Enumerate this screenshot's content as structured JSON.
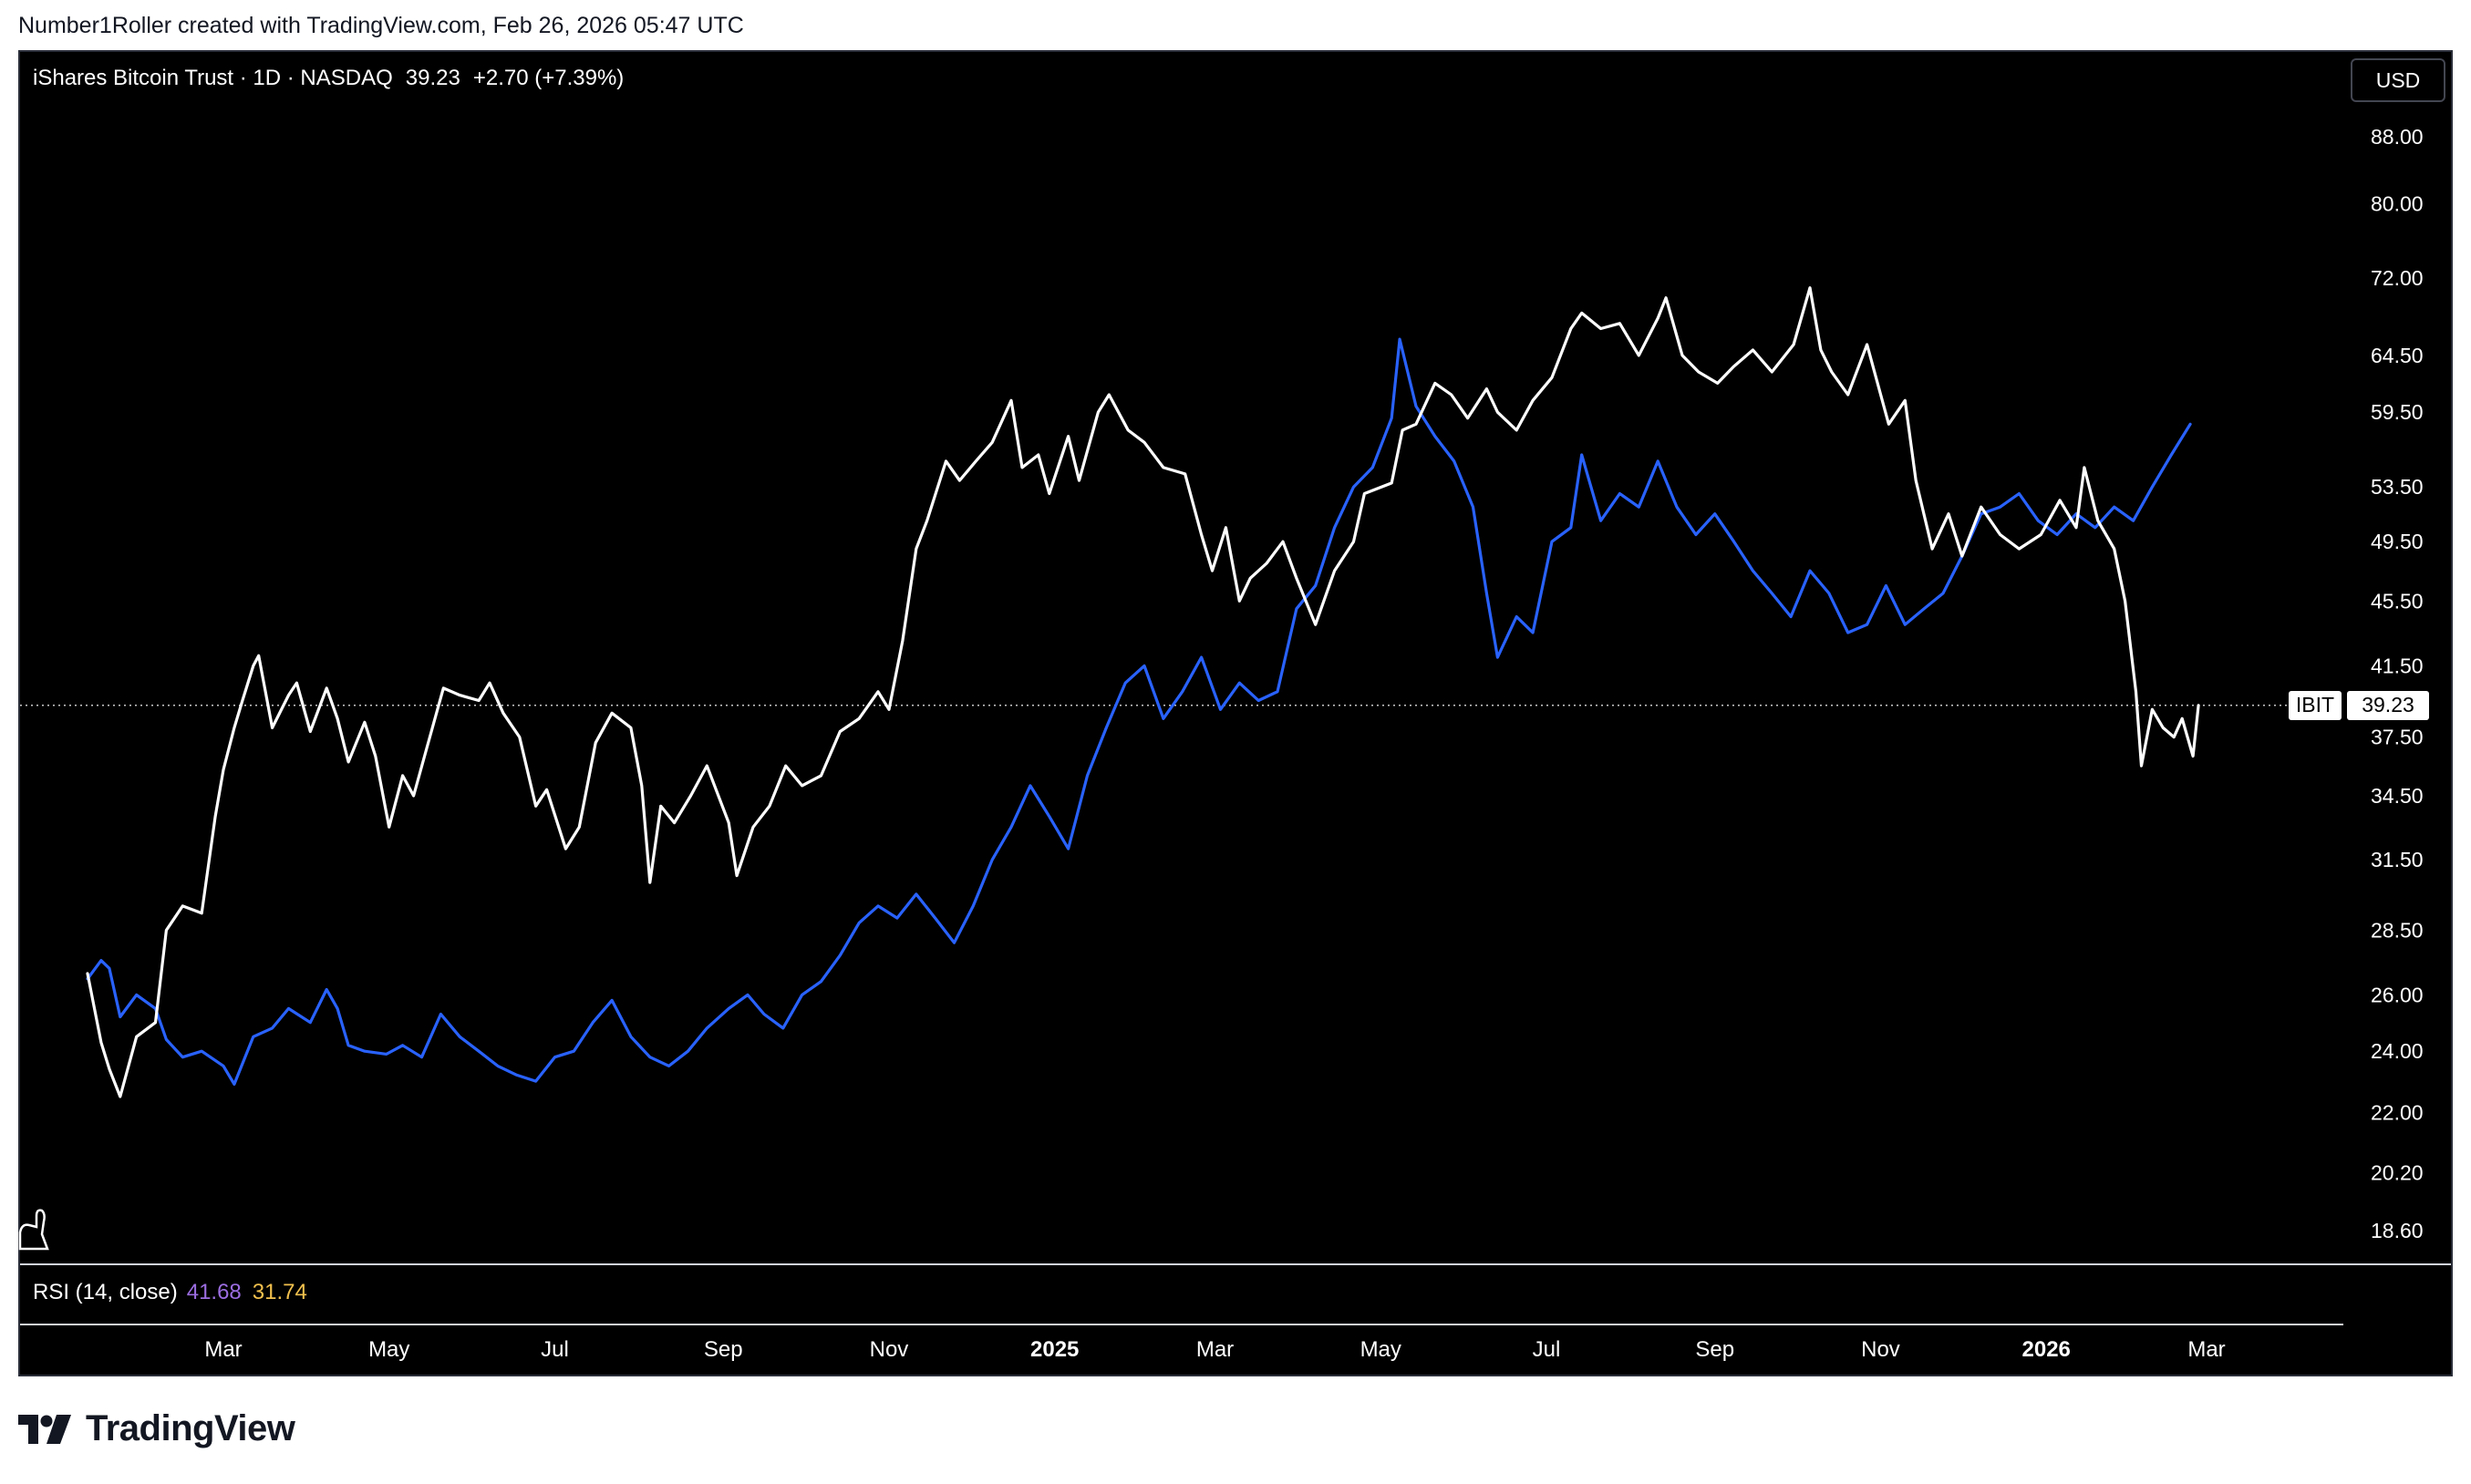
{
  "header": {
    "caption": "Number1Roller created with TradingView.com, Feb 26, 2026 05:47 UTC"
  },
  "legend": {
    "symbol": "iShares Bitcoin Trust · 1D · NASDAQ",
    "last": "39.23",
    "change": "+2.70 (+7.39%)"
  },
  "currency": "USD",
  "rsi": {
    "label": "RSI (14, close)",
    "value_a": "41.68",
    "value_b": "31.74"
  },
  "price_tag": {
    "ticker": "IBIT",
    "value": "39.23"
  },
  "brand": "TradingView",
  "colors": {
    "background": "#000000",
    "series_primary": "#ffffff",
    "series_compare": "#2962ff",
    "text": "#ffffff"
  },
  "chart_data": {
    "type": "line",
    "yscale": "log",
    "ylim": [
      17.5,
      96
    ],
    "xlim": [
      "2024-01-11",
      "2026-05-31"
    ],
    "yticks": [
      "88.00",
      "80.00",
      "72.00",
      "64.50",
      "59.50",
      "53.50",
      "49.50",
      "45.50",
      "41.50",
      "37.50",
      "34.50",
      "31.50",
      "28.50",
      "26.00",
      "24.00",
      "22.00",
      "20.20",
      "18.60"
    ],
    "xticks": [
      {
        "label": "Mar",
        "x": "2024-03-01"
      },
      {
        "label": "May",
        "x": "2024-05-01"
      },
      {
        "label": "Jul",
        "x": "2024-07-01"
      },
      {
        "label": "Sep",
        "x": "2024-09-01"
      },
      {
        "label": "Nov",
        "x": "2024-11-01"
      },
      {
        "label": "2025",
        "x": "2025-01-01"
      },
      {
        "label": "Mar",
        "x": "2025-03-01"
      },
      {
        "label": "May",
        "x": "2025-05-01"
      },
      {
        "label": "Jul",
        "x": "2025-07-01"
      },
      {
        "label": "Sep",
        "x": "2025-09-01"
      },
      {
        "label": "Nov",
        "x": "2025-11-01"
      },
      {
        "label": "2026",
        "x": "2026-01-01"
      },
      {
        "label": "Mar",
        "x": "2026-03-01"
      }
    ],
    "last_price_line": 39.23,
    "series": [
      {
        "name": "IBIT",
        "color": "#ffffff",
        "points": [
          [
            "2024-01-11",
            26.8
          ],
          [
            "2024-01-16",
            24.3
          ],
          [
            "2024-01-19",
            23.4
          ],
          [
            "2024-01-23",
            22.5
          ],
          [
            "2024-01-29",
            24.5
          ],
          [
            "2024-02-05",
            25.0
          ],
          [
            "2024-02-09",
            28.5
          ],
          [
            "2024-02-15",
            29.5
          ],
          [
            "2024-02-22",
            29.2
          ],
          [
            "2024-02-27",
            33.5
          ],
          [
            "2024-03-01",
            35.8
          ],
          [
            "2024-03-05",
            38.0
          ],
          [
            "2024-03-08",
            39.5
          ],
          [
            "2024-03-12",
            41.5
          ],
          [
            "2024-03-14",
            42.1
          ],
          [
            "2024-03-19",
            38.0
          ],
          [
            "2024-03-25",
            39.8
          ],
          [
            "2024-03-28",
            40.5
          ],
          [
            "2024-04-02",
            37.8
          ],
          [
            "2024-04-08",
            40.2
          ],
          [
            "2024-04-12",
            38.5
          ],
          [
            "2024-04-16",
            36.2
          ],
          [
            "2024-04-22",
            38.3
          ],
          [
            "2024-04-26",
            36.5
          ],
          [
            "2024-05-01",
            33.0
          ],
          [
            "2024-05-06",
            35.5
          ],
          [
            "2024-05-10",
            34.5
          ],
          [
            "2024-05-15",
            37.0
          ],
          [
            "2024-05-21",
            40.2
          ],
          [
            "2024-05-27",
            39.8
          ],
          [
            "2024-06-03",
            39.5
          ],
          [
            "2024-06-07",
            40.5
          ],
          [
            "2024-06-12",
            38.8
          ],
          [
            "2024-06-18",
            37.5
          ],
          [
            "2024-06-24",
            34.0
          ],
          [
            "2024-06-28",
            34.8
          ],
          [
            "2024-07-05",
            32.0
          ],
          [
            "2024-07-10",
            33.0
          ],
          [
            "2024-07-16",
            37.2
          ],
          [
            "2024-07-22",
            38.8
          ],
          [
            "2024-07-29",
            38.0
          ],
          [
            "2024-08-02",
            35.0
          ],
          [
            "2024-08-05",
            30.5
          ],
          [
            "2024-08-09",
            34.0
          ],
          [
            "2024-08-14",
            33.2
          ],
          [
            "2024-08-20",
            34.5
          ],
          [
            "2024-08-26",
            36.0
          ],
          [
            "2024-09-03",
            33.2
          ],
          [
            "2024-09-06",
            30.8
          ],
          [
            "2024-09-12",
            33.0
          ],
          [
            "2024-09-18",
            34.0
          ],
          [
            "2024-09-24",
            36.0
          ],
          [
            "2024-09-30",
            35.0
          ],
          [
            "2024-10-07",
            35.5
          ],
          [
            "2024-10-14",
            37.8
          ],
          [
            "2024-10-21",
            38.5
          ],
          [
            "2024-10-28",
            40.0
          ],
          [
            "2024-11-01",
            39.0
          ],
          [
            "2024-11-06",
            43.0
          ],
          [
            "2024-11-11",
            49.0
          ],
          [
            "2024-11-15",
            51.0
          ],
          [
            "2024-11-22",
            55.5
          ],
          [
            "2024-11-27",
            54.0
          ],
          [
            "2024-12-03",
            55.5
          ],
          [
            "2024-12-09",
            57.0
          ],
          [
            "2024-12-16",
            60.5
          ],
          [
            "2024-12-20",
            55.0
          ],
          [
            "2024-12-26",
            56.0
          ],
          [
            "2024-12-30",
            53.0
          ],
          [
            "2025-01-06",
            57.5
          ],
          [
            "2025-01-10",
            54.0
          ],
          [
            "2025-01-17",
            59.5
          ],
          [
            "2025-01-21",
            61.0
          ],
          [
            "2025-01-28",
            58.0
          ],
          [
            "2025-02-03",
            57.0
          ],
          [
            "2025-02-10",
            55.0
          ],
          [
            "2025-02-18",
            54.5
          ],
          [
            "2025-02-24",
            50.0
          ],
          [
            "2025-02-28",
            47.5
          ],
          [
            "2025-03-05",
            50.5
          ],
          [
            "2025-03-10",
            45.5
          ],
          [
            "2025-03-14",
            47.0
          ],
          [
            "2025-03-20",
            48.0
          ],
          [
            "2025-03-26",
            49.5
          ],
          [
            "2025-03-31",
            47.0
          ],
          [
            "2025-04-07",
            44.0
          ],
          [
            "2025-04-14",
            47.5
          ],
          [
            "2025-04-21",
            49.5
          ],
          [
            "2025-04-25",
            53.0
          ],
          [
            "2025-05-05",
            53.8
          ],
          [
            "2025-05-09",
            58.0
          ],
          [
            "2025-05-14",
            58.5
          ],
          [
            "2025-05-21",
            62.0
          ],
          [
            "2025-05-27",
            61.0
          ],
          [
            "2025-06-02",
            59.0
          ],
          [
            "2025-06-09",
            61.5
          ],
          [
            "2025-06-13",
            59.5
          ],
          [
            "2025-06-20",
            58.0
          ],
          [
            "2025-06-26",
            60.5
          ],
          [
            "2025-07-03",
            62.5
          ],
          [
            "2025-07-10",
            67.0
          ],
          [
            "2025-07-14",
            68.5
          ],
          [
            "2025-07-21",
            67.0
          ],
          [
            "2025-07-28",
            67.5
          ],
          [
            "2025-08-04",
            64.5
          ],
          [
            "2025-08-11",
            68.0
          ],
          [
            "2025-08-14",
            70.0
          ],
          [
            "2025-08-20",
            64.5
          ],
          [
            "2025-08-26",
            63.0
          ],
          [
            "2025-09-02",
            62.0
          ],
          [
            "2025-09-08",
            63.5
          ],
          [
            "2025-09-15",
            65.0
          ],
          [
            "2025-09-22",
            63.0
          ],
          [
            "2025-09-30",
            65.5
          ],
          [
            "2025-10-06",
            71.0
          ],
          [
            "2025-10-10",
            65.0
          ],
          [
            "2025-10-14",
            63.0
          ],
          [
            "2025-10-20",
            61.0
          ],
          [
            "2025-10-27",
            65.5
          ],
          [
            "2025-11-04",
            58.5
          ],
          [
            "2025-11-10",
            60.5
          ],
          [
            "2025-11-14",
            54.0
          ],
          [
            "2025-11-20",
            49.0
          ],
          [
            "2025-11-26",
            51.5
          ],
          [
            "2025-12-01",
            48.5
          ],
          [
            "2025-12-08",
            52.0
          ],
          [
            "2025-12-15",
            50.0
          ],
          [
            "2025-12-22",
            49.0
          ],
          [
            "2025-12-30",
            50.0
          ],
          [
            "2026-01-06",
            52.5
          ],
          [
            "2026-01-12",
            50.5
          ],
          [
            "2026-01-15",
            55.0
          ],
          [
            "2026-01-20",
            51.0
          ],
          [
            "2026-01-26",
            49.0
          ],
          [
            "2026-01-30",
            45.5
          ],
          [
            "2026-02-03",
            40.0
          ],
          [
            "2026-02-05",
            36.0
          ],
          [
            "2026-02-09",
            39.0
          ],
          [
            "2026-02-13",
            38.0
          ],
          [
            "2026-02-17",
            37.5
          ],
          [
            "2026-02-20",
            38.5
          ],
          [
            "2026-02-24",
            36.5
          ],
          [
            "2026-02-26",
            39.23
          ]
        ]
      },
      {
        "name": "",
        "color": "#2962ff",
        "points": [
          [
            "2024-01-11",
            26.6
          ],
          [
            "2024-01-16",
            27.3
          ],
          [
            "2024-01-19",
            27.0
          ],
          [
            "2024-01-23",
            25.2
          ],
          [
            "2024-01-29",
            26.0
          ],
          [
            "2024-02-05",
            25.5
          ],
          [
            "2024-02-09",
            24.4
          ],
          [
            "2024-02-15",
            23.8
          ],
          [
            "2024-02-22",
            24.0
          ],
          [
            "2024-03-01",
            23.5
          ],
          [
            "2024-03-05",
            22.9
          ],
          [
            "2024-03-12",
            24.5
          ],
          [
            "2024-03-19",
            24.8
          ],
          [
            "2024-03-25",
            25.5
          ],
          [
            "2024-04-02",
            25.0
          ],
          [
            "2024-04-08",
            26.2
          ],
          [
            "2024-04-12",
            25.5
          ],
          [
            "2024-04-16",
            24.2
          ],
          [
            "2024-04-22",
            24.0
          ],
          [
            "2024-04-30",
            23.9
          ],
          [
            "2024-05-06",
            24.2
          ],
          [
            "2024-05-13",
            23.8
          ],
          [
            "2024-05-20",
            25.3
          ],
          [
            "2024-05-27",
            24.5
          ],
          [
            "2024-06-03",
            24.0
          ],
          [
            "2024-06-10",
            23.5
          ],
          [
            "2024-06-17",
            23.2
          ],
          [
            "2024-06-24",
            23.0
          ],
          [
            "2024-07-01",
            23.8
          ],
          [
            "2024-07-08",
            24.0
          ],
          [
            "2024-07-15",
            25.0
          ],
          [
            "2024-07-22",
            25.8
          ],
          [
            "2024-07-29",
            24.5
          ],
          [
            "2024-08-05",
            23.8
          ],
          [
            "2024-08-12",
            23.5
          ],
          [
            "2024-08-19",
            24.0
          ],
          [
            "2024-08-26",
            24.8
          ],
          [
            "2024-09-03",
            25.5
          ],
          [
            "2024-09-10",
            26.0
          ],
          [
            "2024-09-16",
            25.3
          ],
          [
            "2024-09-23",
            24.8
          ],
          [
            "2024-09-30",
            26.0
          ],
          [
            "2024-10-07",
            26.5
          ],
          [
            "2024-10-14",
            27.5
          ],
          [
            "2024-10-21",
            28.8
          ],
          [
            "2024-10-28",
            29.5
          ],
          [
            "2024-11-04",
            29.0
          ],
          [
            "2024-11-11",
            30.0
          ],
          [
            "2024-11-18",
            29.0
          ],
          [
            "2024-11-25",
            28.0
          ],
          [
            "2024-12-02",
            29.5
          ],
          [
            "2024-12-09",
            31.5
          ],
          [
            "2024-12-16",
            33.0
          ],
          [
            "2024-12-23",
            35.0
          ],
          [
            "2024-12-30",
            33.5
          ],
          [
            "2025-01-06",
            32.0
          ],
          [
            "2025-01-13",
            35.5
          ],
          [
            "2025-01-20",
            38.0
          ],
          [
            "2025-01-27",
            40.5
          ],
          [
            "2025-02-03",
            41.5
          ],
          [
            "2025-02-10",
            38.5
          ],
          [
            "2025-02-17",
            40.0
          ],
          [
            "2025-02-24",
            42.0
          ],
          [
            "2025-03-03",
            39.0
          ],
          [
            "2025-03-10",
            40.5
          ],
          [
            "2025-03-17",
            39.5
          ],
          [
            "2025-03-24",
            40.0
          ],
          [
            "2025-03-31",
            45.0
          ],
          [
            "2025-04-07",
            46.5
          ],
          [
            "2025-04-14",
            50.5
          ],
          [
            "2025-04-21",
            53.5
          ],
          [
            "2025-04-28",
            55.0
          ],
          [
            "2025-05-05",
            59.0
          ],
          [
            "2025-05-08",
            66.0
          ],
          [
            "2025-05-14",
            60.0
          ],
          [
            "2025-05-21",
            57.5
          ],
          [
            "2025-05-28",
            55.5
          ],
          [
            "2025-06-04",
            52.0
          ],
          [
            "2025-06-09",
            46.0
          ],
          [
            "2025-06-13",
            42.0
          ],
          [
            "2025-06-20",
            44.5
          ],
          [
            "2025-06-26",
            43.5
          ],
          [
            "2025-07-03",
            49.5
          ],
          [
            "2025-07-10",
            50.5
          ],
          [
            "2025-07-14",
            56.0
          ],
          [
            "2025-07-21",
            51.0
          ],
          [
            "2025-07-28",
            53.0
          ],
          [
            "2025-08-04",
            52.0
          ],
          [
            "2025-08-11",
            55.5
          ],
          [
            "2025-08-18",
            52.0
          ],
          [
            "2025-08-25",
            50.0
          ],
          [
            "2025-09-01",
            51.5
          ],
          [
            "2025-09-08",
            49.5
          ],
          [
            "2025-09-15",
            47.5
          ],
          [
            "2025-09-22",
            46.0
          ],
          [
            "2025-09-29",
            44.5
          ],
          [
            "2025-10-06",
            47.5
          ],
          [
            "2025-10-13",
            46.0
          ],
          [
            "2025-10-20",
            43.5
          ],
          [
            "2025-10-27",
            44.0
          ],
          [
            "2025-11-03",
            46.5
          ],
          [
            "2025-11-10",
            44.0
          ],
          [
            "2025-11-17",
            45.0
          ],
          [
            "2025-11-24",
            46.0
          ],
          [
            "2025-12-01",
            48.5
          ],
          [
            "2025-12-08",
            51.5
          ],
          [
            "2025-12-15",
            52.0
          ],
          [
            "2025-12-22",
            53.0
          ],
          [
            "2025-12-29",
            51.0
          ],
          [
            "2026-01-05",
            50.0
          ],
          [
            "2026-01-12",
            51.5
          ],
          [
            "2026-01-19",
            50.5
          ],
          [
            "2026-01-26",
            52.0
          ],
          [
            "2026-02-02",
            51.0
          ],
          [
            "2026-02-09",
            53.5
          ],
          [
            "2026-02-16",
            56.0
          ],
          [
            "2026-02-23",
            58.5
          ]
        ]
      }
    ]
  }
}
